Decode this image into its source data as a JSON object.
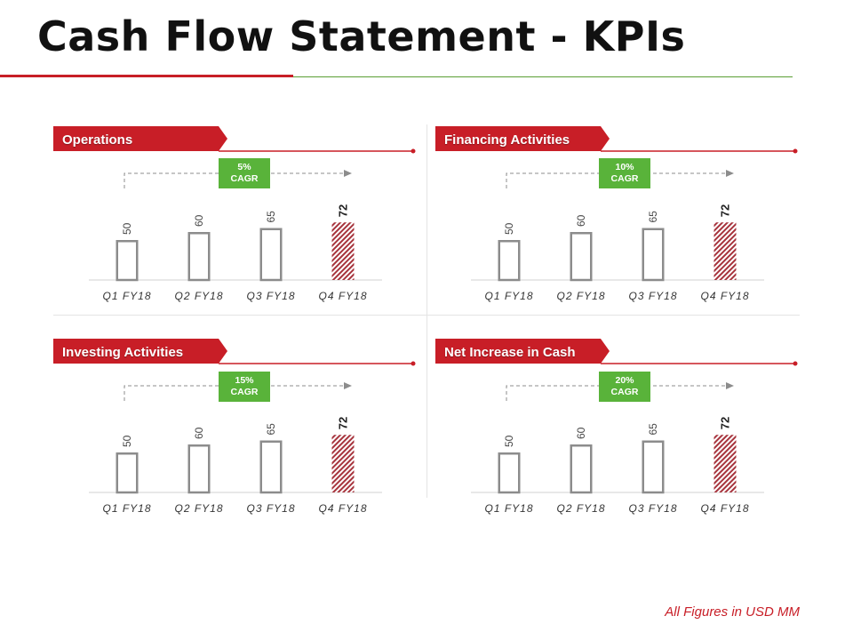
{
  "title": "Cash Flow Statement - KPIs",
  "footnote": "All Figures in USD MM",
  "colors": {
    "accent_red": "#c81e27",
    "accent_green": "#59b33a",
    "bar_outline": "#8c8c8c",
    "highlight_bar": "#a7343d"
  },
  "chart_data": [
    {
      "type": "bar",
      "title": "Operations",
      "cagr": "5%",
      "cagr_label": "CAGR",
      "categories": [
        "Q1 FY18",
        "Q2 FY18",
        "Q3 FY18",
        "Q4 FY18"
      ],
      "values": [
        50,
        60,
        65,
        72
      ],
      "highlight_index": 3
    },
    {
      "type": "bar",
      "title": "Financing Activities",
      "cagr": "10%",
      "cagr_label": "CAGR",
      "categories": [
        "Q1 FY18",
        "Q2 FY18",
        "Q3 FY18",
        "Q4 FY18"
      ],
      "values": [
        50,
        60,
        65,
        72
      ],
      "highlight_index": 3
    },
    {
      "type": "bar",
      "title": "Investing Activities",
      "cagr": "15%",
      "cagr_label": "CAGR",
      "categories": [
        "Q1 FY18",
        "Q2 FY18",
        "Q3 FY18",
        "Q4 FY18"
      ],
      "values": [
        50,
        60,
        65,
        72
      ],
      "highlight_index": 3
    },
    {
      "type": "bar",
      "title": "Net Increase in Cash",
      "cagr": "20%",
      "cagr_label": "CAGR",
      "categories": [
        "Q1 FY18",
        "Q2 FY18",
        "Q3 FY18",
        "Q4 FY18"
      ],
      "values": [
        50,
        60,
        65,
        72
      ],
      "highlight_index": 3
    }
  ]
}
